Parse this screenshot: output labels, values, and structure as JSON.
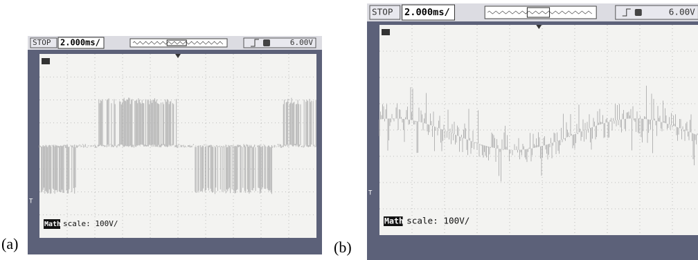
{
  "panels": [
    {
      "label": "(a)",
      "status": "STOP",
      "timebase": "2.000ms/",
      "trigger_level": "6.00V",
      "math_label": "Math",
      "math_scale": "scale: 100V/",
      "trigger_marker": "T"
    },
    {
      "label": "(b)",
      "status": "STOP",
      "timebase": "2.000ms/",
      "trigger_level": "6.00V",
      "math_label": "Math",
      "math_scale": "scale: 100V/",
      "trigger_marker": "T"
    }
  ]
}
